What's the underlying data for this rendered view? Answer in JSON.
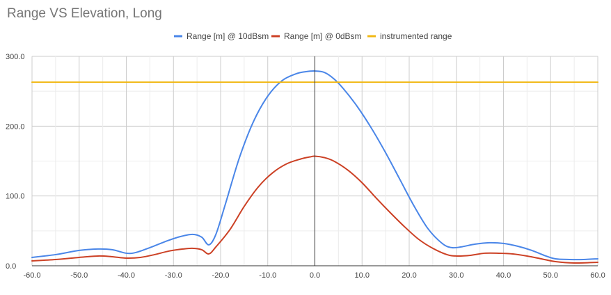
{
  "chart_data": {
    "type": "line",
    "title": "Range VS Elevation, Long",
    "xlabel": "",
    "ylabel": "",
    "xlim": [
      -60,
      60
    ],
    "ylim": [
      0,
      300
    ],
    "x_ticks": [
      "-60.0",
      "-50.0",
      "-40.0",
      "-30.0",
      "-20.0",
      "-10.0",
      "0.0",
      "10.0",
      "20.0",
      "30.0",
      "40.0",
      "50.0",
      "60.0"
    ],
    "y_ticks": [
      "0.0",
      "100.0",
      "200.0",
      "300.0"
    ],
    "grid": true,
    "legend_position": "top",
    "series": [
      {
        "name": "Range [m] @ 10dBsm",
        "color": "#4a86e8",
        "x": [
          -60,
          -55,
          -50,
          -46,
          -43,
          -40,
          -38,
          -35,
          -32,
          -29,
          -26,
          -24,
          -22.5,
          -21,
          -19,
          -16,
          -13,
          -10,
          -7,
          -4,
          -2,
          0,
          2,
          4,
          6,
          9,
          12,
          15,
          18,
          21,
          24,
          27,
          29,
          31,
          34,
          37,
          40,
          43,
          46,
          49,
          51,
          54,
          57,
          60
        ],
        "values": [
          12,
          16,
          22,
          24,
          23,
          18,
          19,
          26,
          34,
          41,
          45,
          41,
          30,
          45,
          88,
          155,
          207,
          243,
          265,
          275,
          278,
          279,
          277,
          268,
          254,
          228,
          197,
          162,
          124,
          86,
          53,
          32,
          26,
          27,
          31,
          33,
          32,
          28,
          22,
          14,
          10,
          9,
          9,
          10
        ]
      },
      {
        "name": "Range [m] @ 0dBsm",
        "color": "#cc4125",
        "x": [
          -60,
          -55,
          -50,
          -46,
          -43,
          -40,
          -37,
          -34,
          -31,
          -28,
          -26,
          -24,
          -22.5,
          -21,
          -18,
          -15,
          -12,
          -9,
          -6,
          -3,
          -1,
          0,
          2,
          4,
          7,
          10,
          13,
          16,
          19,
          22,
          25,
          28,
          30,
          33,
          36,
          39,
          42,
          45,
          48,
          51,
          55,
          60
        ],
        "values": [
          7,
          9,
          12,
          14,
          13,
          11,
          12,
          16,
          21,
          24,
          25,
          23,
          17,
          27,
          52,
          85,
          113,
          133,
          146,
          153,
          156,
          157,
          155,
          150,
          137,
          119,
          97,
          76,
          56,
          38,
          25,
          16,
          14,
          15,
          18,
          18,
          17,
          14,
          10,
          6,
          4,
          5
        ]
      },
      {
        "name": "instrumented range",
        "color": "#f1b814",
        "x": [
          -60,
          60
        ],
        "values": [
          263,
          263
        ]
      }
    ]
  }
}
